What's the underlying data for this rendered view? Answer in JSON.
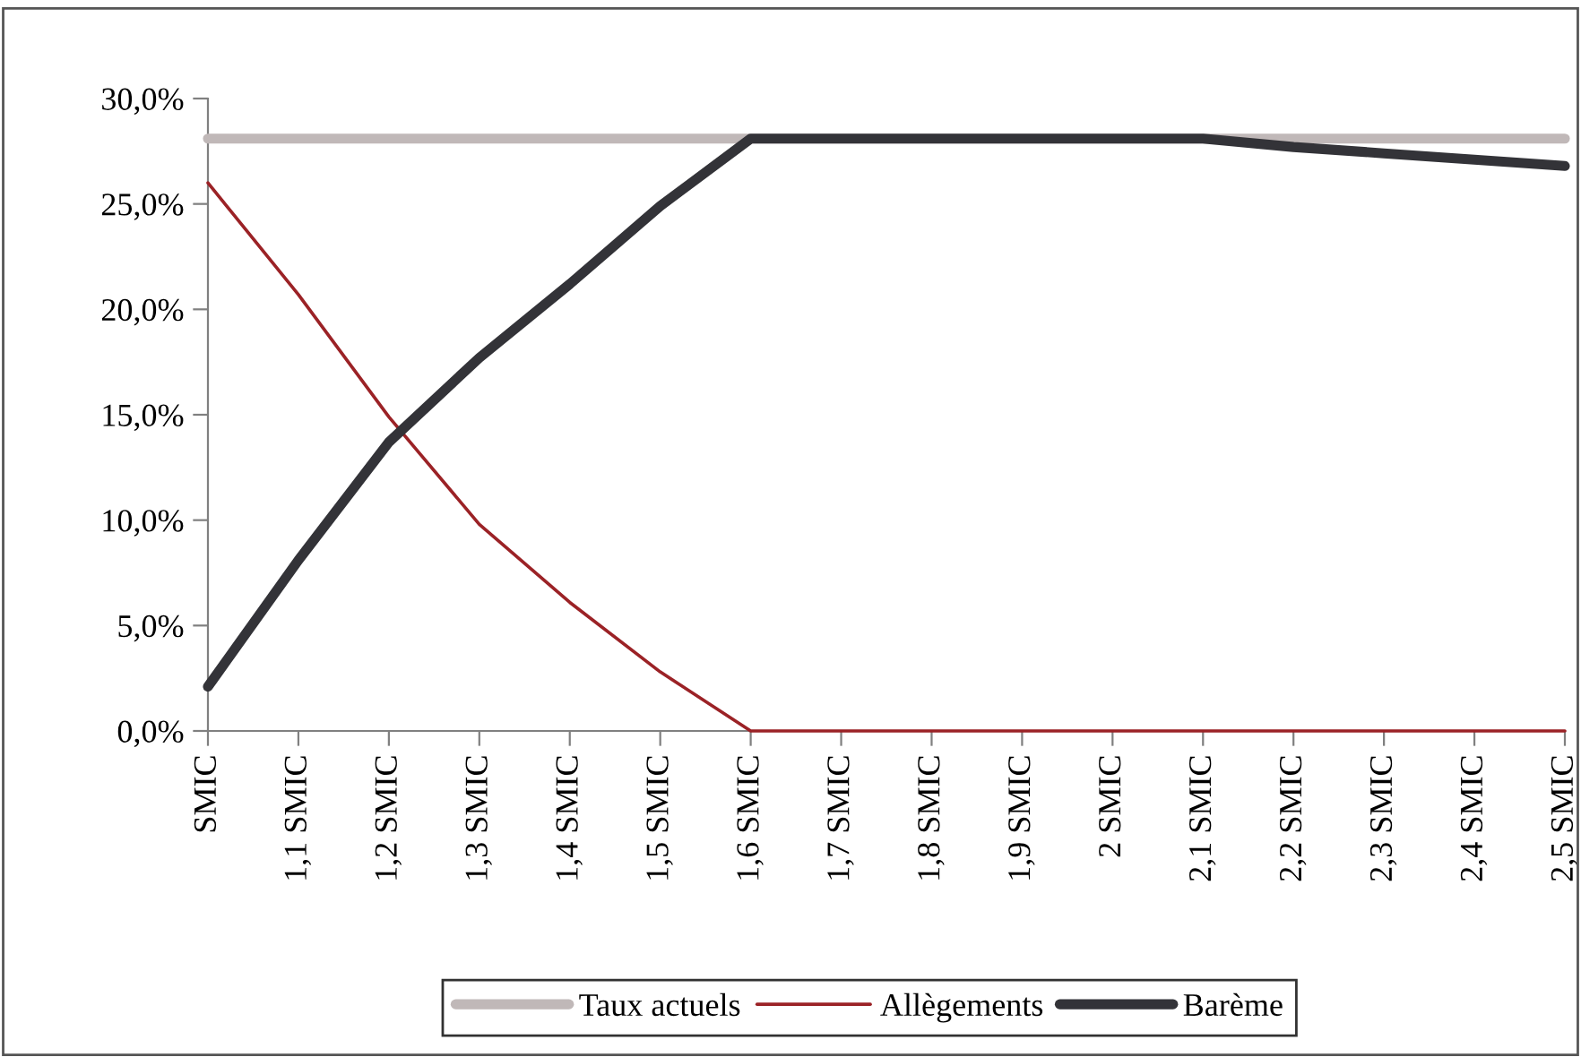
{
  "chart_data": {
    "type": "line",
    "categories": [
      "SMIC",
      "1,1 SMIC",
      "1,2 SMIC",
      "1,3 SMIC",
      "1,4 SMIC",
      "1,5 SMIC",
      "1,6 SMIC",
      "1,7 SMIC",
      "1,8 SMIC",
      "1,9 SMIC",
      "2 SMIC",
      "2,1 SMIC",
      "2,2 SMIC",
      "2,3 SMIC",
      "2,4 SMIC",
      "2,5 SMIC"
    ],
    "series": [
      {
        "name": "Taux actuels",
        "color": "#c0b8b8",
        "values": [
          28.1,
          28.1,
          28.1,
          28.1,
          28.1,
          28.1,
          28.1,
          28.1,
          28.1,
          28.1,
          28.1,
          28.1,
          28.1,
          28.1,
          28.1,
          28.1
        ]
      },
      {
        "name": "Allègements",
        "color": "#9b2226",
        "values": [
          26.0,
          20.7,
          14.9,
          9.8,
          6.1,
          2.8,
          0,
          0,
          0,
          0,
          0,
          0,
          0,
          0,
          0,
          0
        ]
      },
      {
        "name": "Barème",
        "color": "#333338",
        "values": [
          2.1,
          8.1,
          13.7,
          17.7,
          21.2,
          24.9,
          28.1,
          28.1,
          28.1,
          28.1,
          28.1,
          28.1,
          27.7,
          27.4,
          27.1,
          26.8
        ]
      }
    ],
    "ylim": [
      0,
      30
    ],
    "yticks": [
      {
        "value": 0,
        "label": "0,0%"
      },
      {
        "value": 5,
        "label": "5,0%"
      },
      {
        "value": 10,
        "label": "10,0%"
      },
      {
        "value": 15,
        "label": "15,0%"
      },
      {
        "value": 20,
        "label": "20,0%"
      },
      {
        "value": 25,
        "label": "25,0%"
      },
      {
        "value": 30,
        "label": "30,0%"
      }
    ],
    "grid": false,
    "legend": "bottom",
    "marker": "none",
    "line_style": "solid"
  }
}
